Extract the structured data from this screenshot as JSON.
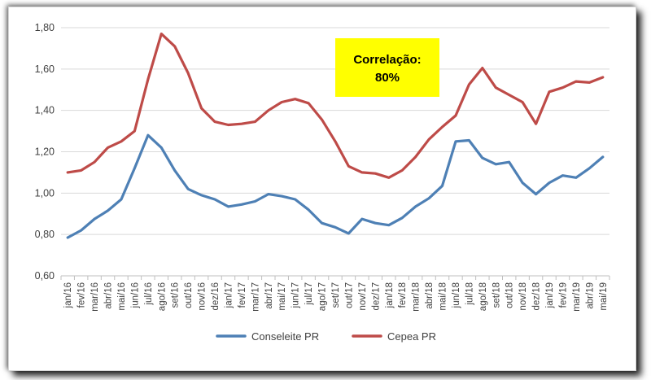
{
  "chart_data": {
    "type": "line",
    "title": "",
    "xlabel": "",
    "ylabel": "",
    "ylim": [
      0.6,
      1.8
    ],
    "yticks": [
      "0,60",
      "0,80",
      "1,00",
      "1,20",
      "1,40",
      "1,60",
      "1,80"
    ],
    "grid": true,
    "legend_position": "bottom",
    "categories": [
      "jan/16",
      "fev/16",
      "mar/16",
      "abr/16",
      "mai/16",
      "jun/16",
      "jul/16",
      "ago/16",
      "set/16",
      "out/16",
      "nov/16",
      "dez/16",
      "jan/17",
      "fev/17",
      "mar/17",
      "abr/17",
      "mai/17",
      "jun/17",
      "jul/17",
      "ago/17",
      "set/17",
      "out/17",
      "nov/17",
      "dez/17",
      "jan/18",
      "fev/18",
      "mar/18",
      "abr/18",
      "mai/18",
      "jun/18",
      "jul/18",
      "ago/18",
      "set/18",
      "out/18",
      "nov/18",
      "dez/18",
      "jan/19",
      "fev/19",
      "mar/19",
      "abr/19",
      "mai/19"
    ],
    "series": [
      {
        "name": "Conseleite PR",
        "color": "#4e80b5",
        "values": [
          0.785,
          0.82,
          0.875,
          0.915,
          0.97,
          1.12,
          1.28,
          1.22,
          1.11,
          1.02,
          0.99,
          0.97,
          0.935,
          0.945,
          0.96,
          0.995,
          0.985,
          0.97,
          0.92,
          0.855,
          0.835,
          0.805,
          0.875,
          0.855,
          0.845,
          0.88,
          0.935,
          0.975,
          1.035,
          1.25,
          1.255,
          1.17,
          1.14,
          1.15,
          1.05,
          0.995,
          1.05,
          1.085,
          1.075,
          1.12,
          1.175
        ]
      },
      {
        "name": "Cepea PR",
        "color": "#be4b48",
        "values": [
          1.1,
          1.11,
          1.15,
          1.22,
          1.25,
          1.3,
          1.55,
          1.77,
          1.71,
          1.58,
          1.41,
          1.345,
          1.33,
          1.335,
          1.345,
          1.4,
          1.44,
          1.455,
          1.435,
          1.355,
          1.25,
          1.13,
          1.1,
          1.095,
          1.075,
          1.11,
          1.175,
          1.26,
          1.32,
          1.375,
          1.525,
          1.605,
          1.51,
          1.475,
          1.44,
          1.335,
          1.49,
          1.51,
          1.54,
          1.535,
          1.56
        ]
      }
    ],
    "annotations": [
      {
        "lines": [
          "Correlação:",
          "80%"
        ],
        "background": "#ffff00"
      }
    ]
  }
}
